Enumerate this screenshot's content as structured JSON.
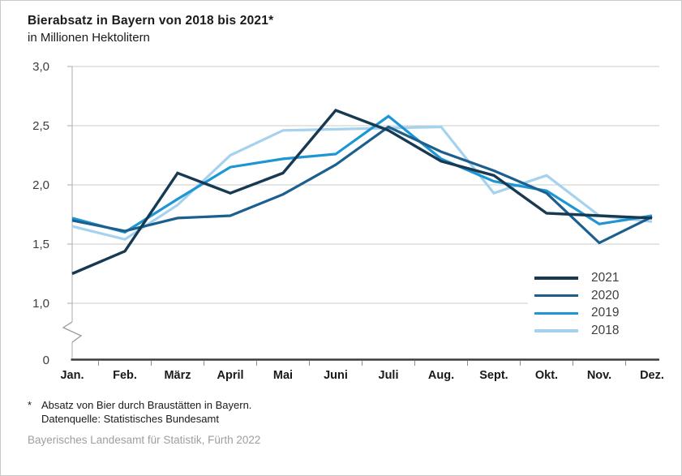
{
  "header": {
    "title": "Bierabsatz in Bayern von 2018 bis 2021*",
    "subtitle": "in Millionen Hektolitern"
  },
  "chart_data": {
    "type": "line",
    "title": "Bierabsatz in Bayern von 2018 bis 2021*",
    "ylabel": "in Millionen Hektolitern",
    "categories": [
      "Jan.",
      "Feb.",
      "März",
      "April",
      "Mai",
      "Juni",
      "Juli",
      "Aug.",
      "Sept.",
      "Okt.",
      "Nov.",
      "Dez."
    ],
    "y_ticks": [
      {
        "label": "3,0",
        "value": 3.0
      },
      {
        "label": "2,5",
        "value": 2.5
      },
      {
        "label": "2,0",
        "value": 2.0
      },
      {
        "label": "1,5",
        "value": 1.5
      },
      {
        "label": "1,0",
        "value": 1.0
      },
      {
        "label": "0",
        "value": 0
      }
    ],
    "ylim": [
      0,
      3.0
    ],
    "axis_break": true,
    "grid": true,
    "legend_position": "inside-right",
    "series": [
      {
        "name": "2021",
        "color": "#173a52",
        "values": [
          1.25,
          1.44,
          2.1,
          1.93,
          2.1,
          2.63,
          2.46,
          2.2,
          2.08,
          1.76,
          1.74,
          1.72
        ]
      },
      {
        "name": "2020",
        "color": "#1c5f8e",
        "values": [
          1.7,
          1.61,
          1.72,
          1.74,
          1.92,
          2.17,
          2.49,
          2.28,
          2.12,
          1.93,
          1.51,
          1.73
        ]
      },
      {
        "name": "2019",
        "color": "#1d96d3",
        "values": [
          1.72,
          1.6,
          1.88,
          2.15,
          2.22,
          2.26,
          2.58,
          2.22,
          2.03,
          1.95,
          1.67,
          1.74
        ]
      },
      {
        "name": "2018",
        "color": "#a5d2ee",
        "values": [
          1.65,
          1.54,
          1.83,
          2.25,
          2.46,
          2.47,
          2.48,
          2.49,
          1.93,
          2.08,
          1.74,
          1.69
        ]
      }
    ]
  },
  "footnote": {
    "marker": "*",
    "line1": "Absatz von Bier durch Braustätten in Bayern.",
    "line2": "Datenquelle: Statistisches Bundesamt"
  },
  "source": "Bayerisches Landesamt für Statistik, Fürth 2022",
  "colors": {
    "gridline": "#cbcbcb",
    "axis": "#ababab",
    "axis_bottom": "#3b3b3b",
    "tick": "#8f8f8f"
  }
}
